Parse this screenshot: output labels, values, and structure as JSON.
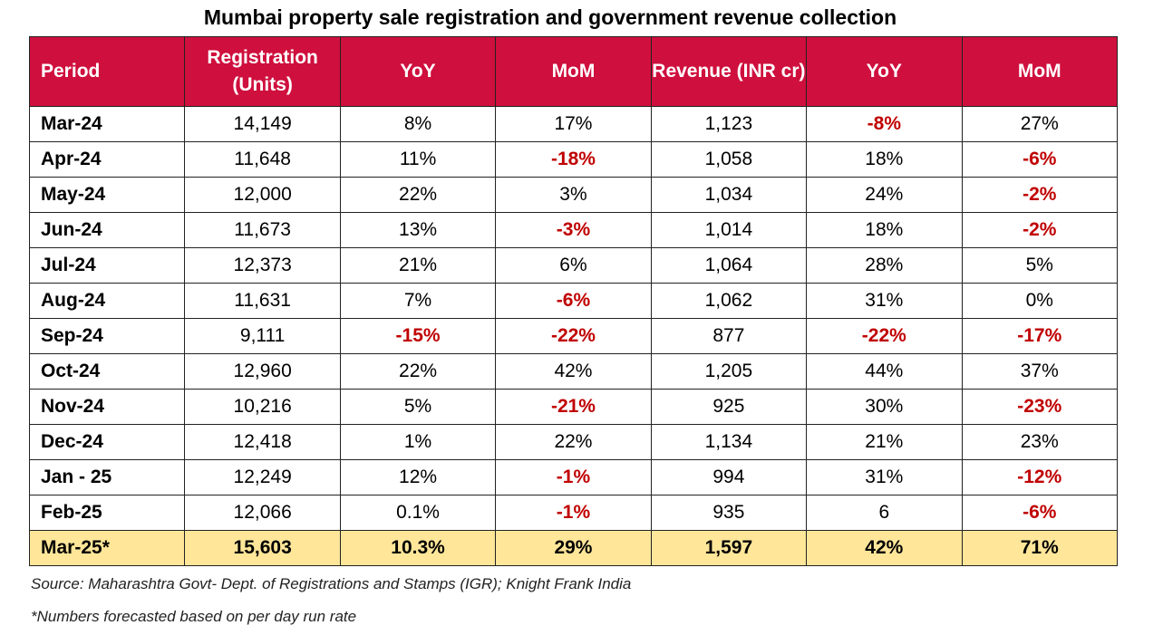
{
  "title": "Mumbai property sale registration and government revenue collection",
  "table": {
    "header": [
      "Period",
      "Registration (Units)",
      "YoY",
      "MoM",
      "Revenue (INR cr)",
      "YoY",
      "MoM"
    ],
    "rows": [
      [
        "Mar-24",
        "14,149",
        "8%",
        "17%",
        "1,123",
        "-8%",
        "27%"
      ],
      [
        "Apr-24",
        "11,648",
        "11%",
        "-18%",
        "1,058",
        "18%",
        "-6%"
      ],
      [
        "May-24",
        "12,000",
        "22%",
        "3%",
        "1,034",
        "24%",
        "-2%"
      ],
      [
        "Jun-24",
        "11,673",
        "13%",
        "-3%",
        "1,014",
        "18%",
        "-2%"
      ],
      [
        "Jul-24",
        "12,373",
        "21%",
        "6%",
        "1,064",
        "28%",
        "5%"
      ],
      [
        "Aug-24",
        "11,631",
        "7%",
        "-6%",
        "1,062",
        "31%",
        "0%"
      ],
      [
        "Sep-24",
        "9,111",
        "-15%",
        "-22%",
        "877",
        "-22%",
        "-17%"
      ],
      [
        "Oct-24",
        "12,960",
        "22%",
        "42%",
        "1,205",
        "44%",
        "37%"
      ],
      [
        "Nov-24",
        "10,216",
        "5%",
        "-21%",
        "925",
        "30%",
        "-23%"
      ],
      [
        "Dec-24",
        "12,418",
        "1%",
        "22%",
        "1,134",
        "21%",
        "23%"
      ],
      [
        "Jan - 25",
        "12,249",
        "12%",
        "-1%",
        "994",
        "31%",
        "-12%"
      ],
      [
        "Feb-25",
        "12,066",
        "0.1%",
        "-1%",
        "935",
        "6",
        "-6%"
      ],
      [
        "Mar-25*",
        "15,603",
        "10.3%",
        "29%",
        "1,597",
        "42%",
        "71%"
      ]
    ]
  },
  "source": "Source: Maharashtra Govt- Dept. of Registrations and Stamps (IGR); Knight Frank India",
  "note": "*Numbers forecasted based on per day run rate"
}
